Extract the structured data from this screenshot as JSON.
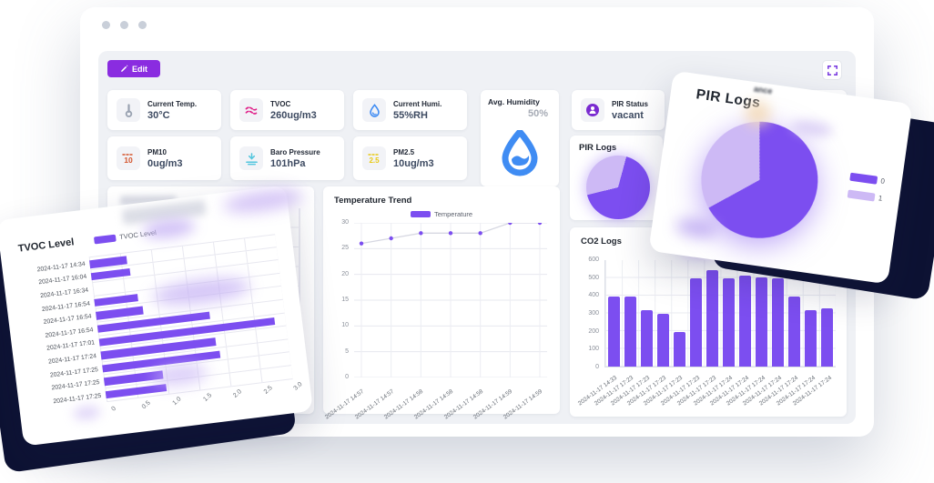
{
  "window": {
    "controls": [
      "dot",
      "dot",
      "dot"
    ]
  },
  "toolbar": {
    "edit_label": "Edit"
  },
  "cards": {
    "current_temp": {
      "label": "Current Temp.",
      "value": "30°C",
      "icon": "thermometer-icon"
    },
    "tvoc": {
      "label": "TVOC",
      "value": "260ug/m3",
      "icon": "airwave-icon"
    },
    "current_humi": {
      "label": "Current Humi.",
      "value": "55%RH",
      "icon": "droplet-icon"
    },
    "pm10": {
      "label": "PM10",
      "value": "0ug/m3",
      "icon": "pm10-icon"
    },
    "baro": {
      "label": "Baro Pressure",
      "value": "101hPa",
      "icon": "gauge-icon"
    },
    "pm25": {
      "label": "PM2.5",
      "value": "10ug/m3",
      "icon": "pm25-icon"
    },
    "avg_humidity": {
      "label": "Avg. Humidity",
      "value": "50%"
    },
    "pir_status": {
      "label": "PIR Status",
      "value": "vacant",
      "icon": "person-icon"
    },
    "partial": {
      "label": "ance"
    }
  },
  "underlying_chart": {
    "visible_xticks": [
      "2.5",
      "3.0"
    ]
  },
  "colors": {
    "accent_purple": "#7c4ef0",
    "edit_purple": "#8a2ce0",
    "pie_light": "#cdb9f5",
    "navy_shadow": "#0d1233",
    "humidity_blue": "#3f8cf3"
  },
  "chart_data": [
    {
      "id": "tvoc_level",
      "type": "bar",
      "orientation": "horizontal",
      "title": "TVOC Level",
      "legend": "TVOC Level",
      "categories": [
        "2024-11-17 14:34",
        "2024-11-17 16:04",
        "2024-11-17 16:34",
        "2024-11-17 16:54",
        "2024-11-17 16:54",
        "2024-11-17 16:54",
        "2024-11-17 17:01",
        "2024-11-17 17:24",
        "2024-11-17 17:25",
        "2024-11-17 17:25",
        "2024-11-17 17:25"
      ],
      "values": [
        0.6,
        0.63,
        0,
        0.7,
        0.76,
        1.8,
        2.82,
        1.85,
        1.9,
        0.94,
        0.97
      ],
      "xlim": [
        0,
        3
      ],
      "xticks": [
        "0",
        "0.5",
        "1.0",
        "1.5",
        "2.0",
        "2.5",
        "3.0"
      ],
      "grid": true
    },
    {
      "id": "temperature_trend",
      "type": "line",
      "title": "Temperature Trend",
      "legend": "Temperature",
      "x": [
        "2024-11-17 14:57",
        "2024-11-17 14:57",
        "2024-11-17 14:58",
        "2024-11-17 14:58",
        "2024-11-17 14:58",
        "2024-11-17 14:59",
        "2024-11-17 14:59"
      ],
      "values": [
        26,
        27,
        28,
        28,
        28,
        30,
        30
      ],
      "ylim": [
        0,
        30
      ],
      "yticks": [
        0,
        5,
        10,
        15,
        20,
        25,
        30
      ],
      "grid": true,
      "legend_position": "top"
    },
    {
      "id": "pir_logs",
      "type": "pie",
      "title": "PIR Logs",
      "legend": [
        "0",
        "1"
      ],
      "values": [
        67,
        33
      ],
      "colors": [
        "#7c4ef0",
        "#cdb9f5"
      ],
      "legend_position": "right"
    },
    {
      "id": "co2_logs",
      "type": "bar",
      "title": "CO2 Logs",
      "categories": [
        "2024-11-17 14:33",
        "2024-11-17 17:23",
        "2024-11-17 17:23",
        "2024-11-17 17:23",
        "2024-11-17 17:23",
        "2024-11-17 17:23",
        "2024-11-17 17:23",
        "2024-11-17 17:24",
        "2024-11-17 17:24",
        "2024-11-17 17:24",
        "2024-11-17 17:24",
        "2024-11-17 17:24",
        "2024-11-17 17:24",
        "2024-11-17 17:24"
      ],
      "values": [
        395,
        395,
        320,
        300,
        195,
        495,
        545,
        495,
        515,
        505,
        495,
        395,
        320,
        330
      ],
      "ylim": [
        0,
        600
      ],
      "yticks": [
        0,
        100,
        200,
        300,
        400,
        500,
        600
      ],
      "grid": true
    }
  ]
}
